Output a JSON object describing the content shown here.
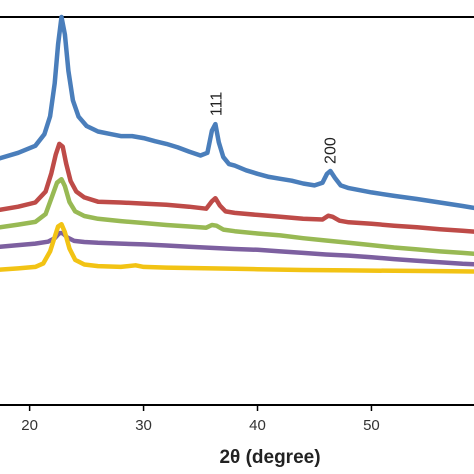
{
  "chart_data": {
    "type": "line",
    "xlabel": "2θ (degree)",
    "ylabel": "",
    "xlim": [
      17.4,
      59.0
    ],
    "ylim": [
      0,
      100
    ],
    "x_ticks": [
      20,
      30,
      40,
      50
    ],
    "grid": false,
    "legend": "none",
    "annotations": [
      {
        "text": "111",
        "x": 36.3
      },
      {
        "text": "200",
        "x": 46.3
      }
    ],
    "series": [
      {
        "color": "#4a7ebb",
        "x": [
          17.4,
          19,
          20.5,
          21.3,
          21.8,
          22.2,
          22.5,
          22.8,
          23.1,
          23.4,
          23.8,
          24.3,
          25,
          26,
          27,
          28,
          29,
          30,
          31,
          32,
          33,
          34,
          35,
          35.6,
          36.0,
          36.3,
          36.6,
          37.0,
          37.5,
          38,
          39,
          40,
          41,
          42,
          43,
          44,
          45,
          45.7,
          46.1,
          46.4,
          46.8,
          47.3,
          48,
          50,
          52,
          54,
          56,
          58,
          59
        ],
        "values": [
          63.6,
          65.0,
          66.8,
          69.8,
          74.4,
          82.9,
          93.0,
          100.0,
          95.5,
          86.1,
          78.5,
          74.3,
          71.9,
          70.5,
          69.9,
          69.3,
          69.3,
          68.8,
          68.0,
          67.3,
          66.4,
          65.3,
          64.3,
          65.0,
          70.7,
          72.4,
          67.7,
          63.9,
          62.1,
          61.7,
          60.5,
          59.6,
          58.8,
          58.3,
          57.8,
          57.1,
          56.6,
          57.3,
          59.6,
          60.3,
          58.5,
          56.6,
          55.9,
          54.8,
          53.9,
          53.1,
          52.2,
          51.3,
          50.8
        ]
      },
      {
        "color": "#be4b48",
        "x": [
          17.4,
          19,
          20.5,
          21.4,
          21.9,
          22.3,
          22.6,
          22.9,
          23.2,
          23.6,
          24.1,
          24.8,
          26,
          28,
          30,
          32,
          34,
          35.5,
          36.0,
          36.3,
          36.7,
          37.2,
          38,
          40,
          42,
          44,
          45.7,
          46.2,
          46.6,
          47.2,
          48,
          50,
          52,
          54,
          56,
          58,
          59
        ],
        "values": [
          50.3,
          51.1,
          52.2,
          55.0,
          59.7,
          64.6,
          67.3,
          66.6,
          62.3,
          57.7,
          55.0,
          53.5,
          52.4,
          52.2,
          51.9,
          51.6,
          51.1,
          50.6,
          52.5,
          53.3,
          51.4,
          49.9,
          49.5,
          49.0,
          48.5,
          48.0,
          47.8,
          48.8,
          48.5,
          47.5,
          47.1,
          46.7,
          46.2,
          45.8,
          45.3,
          44.9,
          44.7
        ]
      },
      {
        "color": "#98b954",
        "x": [
          17.4,
          19,
          20.5,
          21.4,
          22.0,
          22.4,
          22.8,
          23.1,
          23.5,
          24.0,
          24.8,
          26,
          28,
          30,
          32,
          34,
          35.5,
          36.0,
          36.4,
          37.0,
          38,
          40,
          42,
          44,
          46,
          48,
          50,
          52,
          54,
          56,
          58,
          59
        ],
        "values": [
          45.8,
          46.5,
          47.2,
          49.2,
          54.0,
          57.3,
          58.2,
          56.4,
          52.3,
          49.9,
          48.7,
          48.0,
          47.4,
          46.9,
          46.4,
          46.0,
          45.7,
          46.4,
          46.2,
          45.2,
          44.8,
          44.2,
          43.7,
          43.0,
          42.4,
          41.8,
          41.2,
          40.6,
          40.1,
          39.6,
          39.2,
          39.0
        ]
      },
      {
        "color": "#7d60a0",
        "x": [
          17.4,
          19,
          20.5,
          21.6,
          22.2,
          22.6,
          22.9,
          23.3,
          23.9,
          24.8,
          26,
          28,
          30,
          32,
          34,
          36,
          38,
          40,
          42,
          44,
          46,
          48,
          50,
          52,
          54,
          56,
          58,
          59
        ],
        "values": [
          40.8,
          41.2,
          41.6,
          42.1,
          43.0,
          44.3,
          44.3,
          43.2,
          42.3,
          42.0,
          41.8,
          41.6,
          41.4,
          41.1,
          40.8,
          40.5,
          40.2,
          40.0,
          39.6,
          39.2,
          38.8,
          38.5,
          38.1,
          37.6,
          37.2,
          36.8,
          36.4,
          36.3
        ]
      },
      {
        "color": "#f2c314",
        "x": [
          17.4,
          19,
          20.5,
          21.2,
          21.8,
          22.2,
          22.5,
          22.8,
          23.1,
          23.5,
          24.0,
          24.8,
          26,
          28,
          29.3,
          30,
          32,
          34,
          36,
          38,
          40,
          44,
          48,
          52,
          56,
          59
        ],
        "values": [
          34.9,
          35.2,
          35.6,
          36.5,
          39.6,
          43.3,
          46.0,
          46.6,
          44.5,
          40.3,
          37.4,
          36.2,
          35.8,
          35.6,
          36.0,
          35.6,
          35.4,
          35.3,
          35.2,
          35.1,
          35.0,
          34.8,
          34.7,
          34.6,
          34.5,
          34.4
        ]
      }
    ]
  }
}
